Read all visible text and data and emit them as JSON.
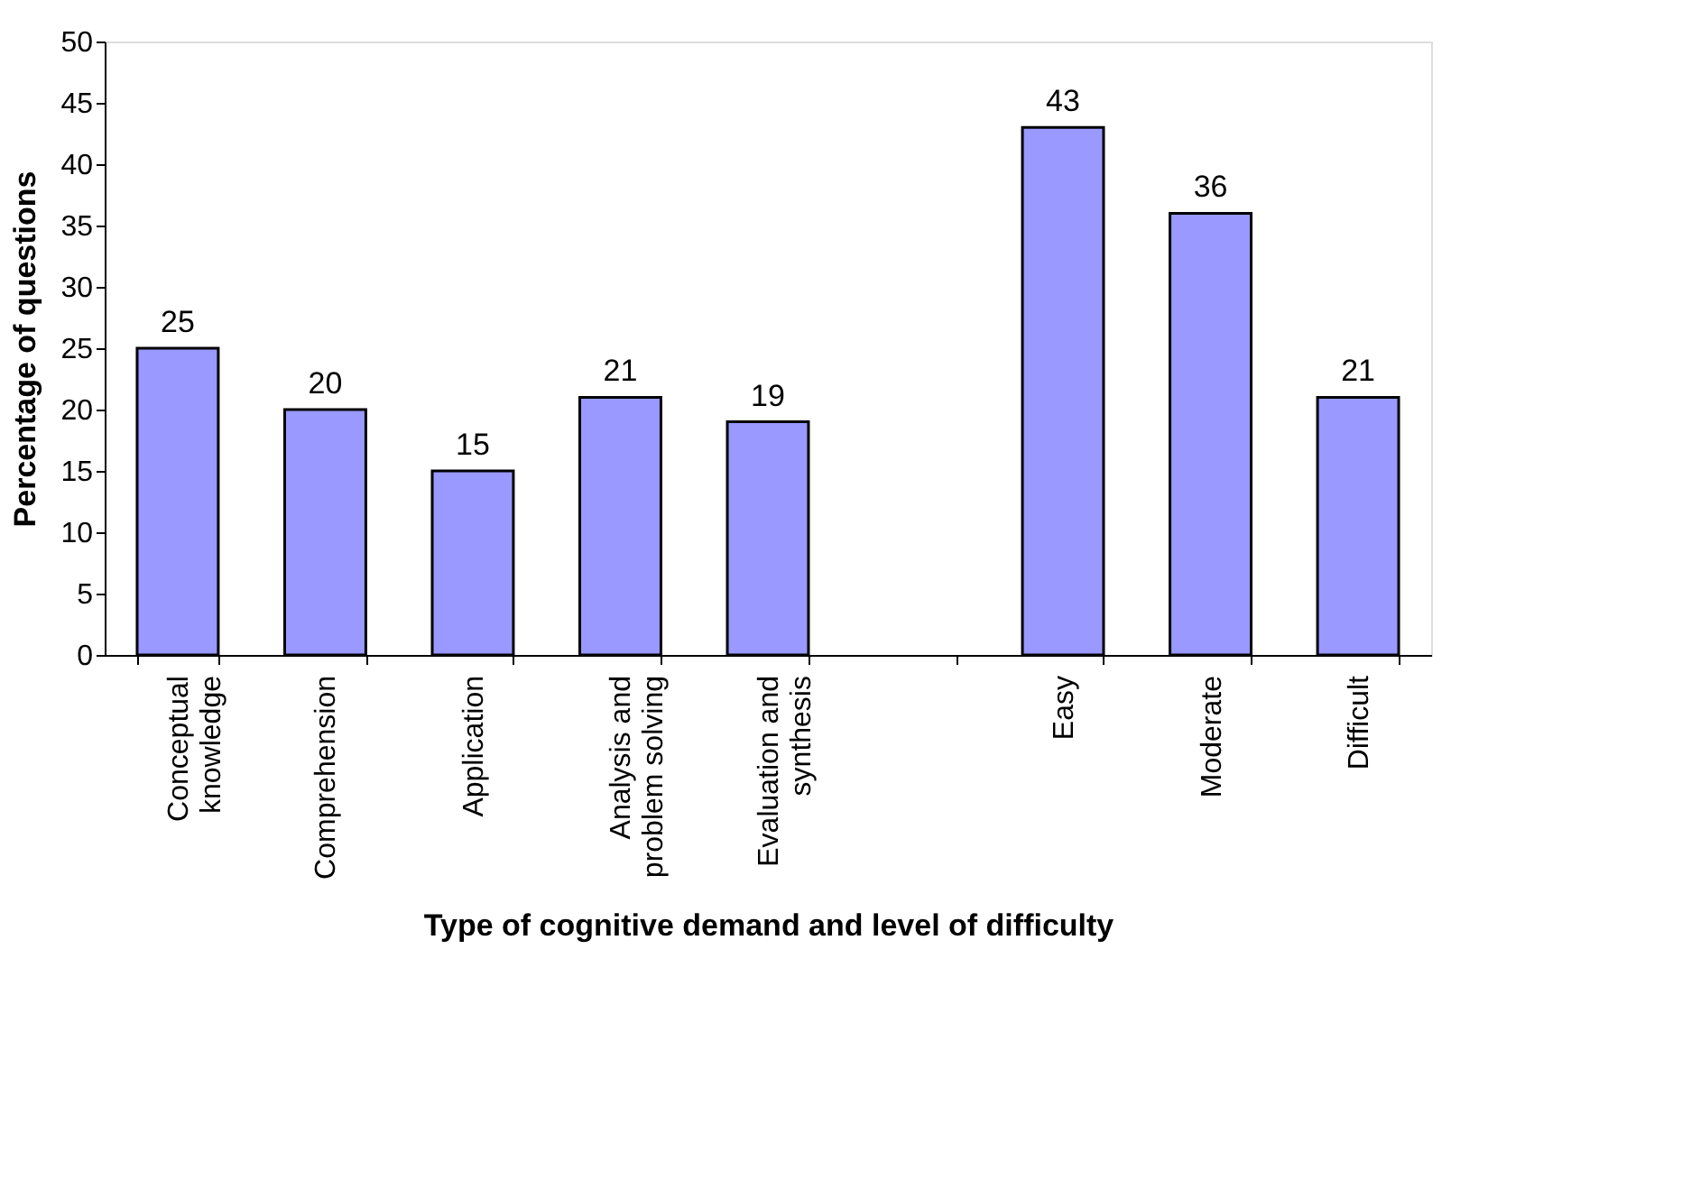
{
  "chart_data": {
    "type": "bar",
    "xlabel": "Type of cognitive demand and level of difficulty",
    "ylabel": "Percentage of questions",
    "categories": [
      "Conceptual knowledge",
      "Comprehension",
      "Application",
      "Analysis and problem solving",
      "Evaluation and synthesis",
      null,
      "Easy",
      "Moderate",
      "Difficult"
    ],
    "values": [
      25,
      20,
      15,
      21,
      19,
      null,
      43,
      36,
      21
    ],
    "color": "#9999ff",
    "ylim": [
      0,
      50
    ],
    "yticks": [
      0,
      5,
      10,
      15,
      20,
      25,
      30,
      35,
      40,
      45,
      50
    ],
    "grid": false,
    "data_labels": true
  }
}
